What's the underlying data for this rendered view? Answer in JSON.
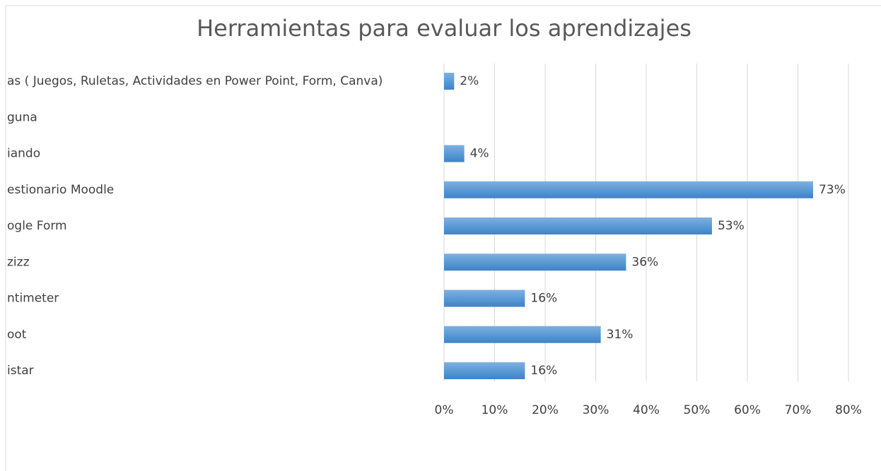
{
  "chart_data": {
    "type": "bar",
    "orientation": "horizontal",
    "title": "Herramientas para evaluar los aprendizajes",
    "categories": [
      "as ( Juegos, Ruletas, Actividades en Power Point, Form, Canva)",
      "guna",
      "iando",
      "estionario Moodle",
      "ogle Form",
      "zizz",
      "ntimeter",
      "oot",
      "istar"
    ],
    "values": [
      2,
      null,
      4,
      73,
      53,
      36,
      16,
      31,
      16
    ],
    "value_labels": [
      "2%",
      null,
      "4%",
      "73%",
      "53%",
      "36%",
      "16%",
      "31%",
      "16%"
    ],
    "color": "#5b9bd5",
    "xlim": [
      0,
      80
    ],
    "xticks": [
      {
        "value": 0,
        "label": "0%"
      },
      {
        "value": 10,
        "label": "10%"
      },
      {
        "value": 20,
        "label": "20%"
      },
      {
        "value": 30,
        "label": "30%"
      },
      {
        "value": 40,
        "label": "40%"
      },
      {
        "value": 50,
        "label": "50%"
      },
      {
        "value": 60,
        "label": "60%"
      },
      {
        "value": 70,
        "label": "70%"
      },
      {
        "value": 80,
        "label": "80%"
      }
    ],
    "grid": true
  }
}
